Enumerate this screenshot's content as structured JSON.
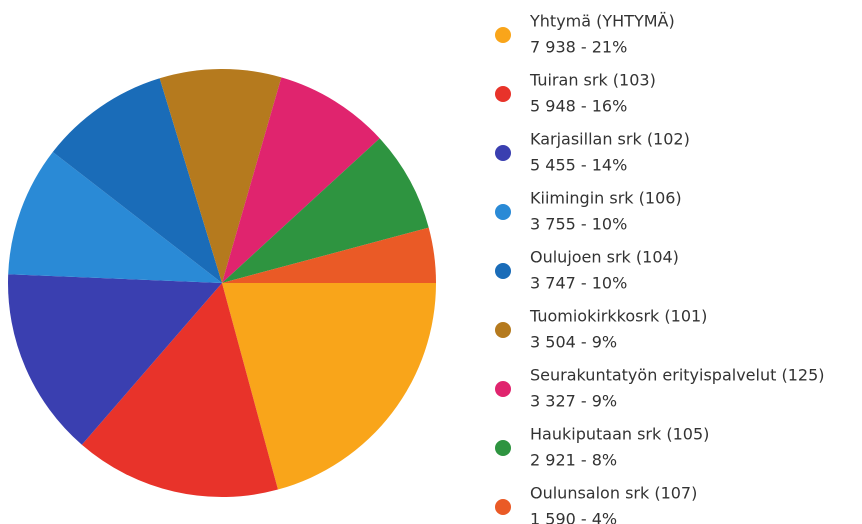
{
  "chart_data": {
    "type": "pie",
    "categories": [
      "Yhtymä (YHTYMÄ)",
      "Tuiran srk (103)",
      "Karjasillan srk (102)",
      "Kiimingin srk (106)",
      "Oulujoen srk (104)",
      "Tuomiokirkkosrk (101)",
      "Seurakuntatyön erityispalvelut (125)",
      "Haukiputaan srk (105)",
      "Oulunsalon srk (107)"
    ],
    "values": [
      7938,
      5948,
      5455,
      3755,
      3747,
      3504,
      3327,
      2921,
      1590
    ],
    "value_labels": [
      "7 938 - 21%",
      "5 948 - 16%",
      "5 455 - 14%",
      "3 755 - 10%",
      "3 747 - 10%",
      "3 504 - 9%",
      "3 327 - 9%",
      "2 921 - 8%",
      "1 590 - 4%"
    ],
    "colors": [
      "#f9a51a",
      "#e8332a",
      "#3a3fb0",
      "#2a8ad6",
      "#1a6cb8",
      "#b57a1e",
      "#e0246e",
      "#2e9440",
      "#ea5a26"
    ]
  }
}
